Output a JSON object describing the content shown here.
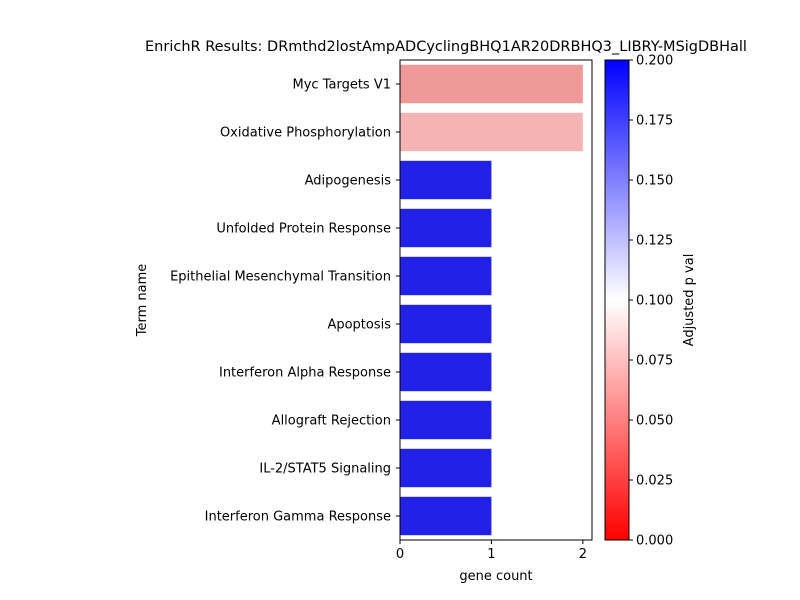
{
  "chart_data": {
    "type": "bar",
    "orientation": "horizontal",
    "title": "EnrichR Results: DRmthd2lostAmpADCyclingBHQ1AR20DRBHQ3_LIBRY-MSigDBHall",
    "xlabel": "gene count",
    "ylabel": "Term name",
    "xlim": [
      0,
      2.1
    ],
    "x_ticks": [
      "0",
      "1",
      "2"
    ],
    "categories": [
      "Myc Targets V1",
      "Oxidative Phosphorylation",
      "Adipogenesis",
      "Unfolded Protein Response",
      "Epithelial Mesenchymal Transition",
      "Apoptosis",
      "Interferon Alpha Response",
      "Allograft Rejection",
      "IL-2/STAT5 Signaling",
      "Interferon Gamma Response"
    ],
    "values": [
      2,
      2,
      1,
      1,
      1,
      1,
      1,
      1,
      1,
      1
    ],
    "bar_colors": [
      "#f09999",
      "#f5b3b3",
      "#2121e8",
      "#2121e8",
      "#2121e8",
      "#2121e8",
      "#2121e8",
      "#2121e8",
      "#2121e8",
      "#2121e8"
    ],
    "colorbar": {
      "label": "Adjusted p val",
      "range": [
        0.0,
        0.2
      ],
      "colormap": [
        "#ff0000",
        "#ffffff",
        "#0000ff"
      ],
      "ticks": [
        "0.000",
        "0.025",
        "0.050",
        "0.075",
        "0.100",
        "0.125",
        "0.150",
        "0.175",
        "0.200"
      ]
    },
    "grid": false,
    "legend": "colorbar-right"
  }
}
